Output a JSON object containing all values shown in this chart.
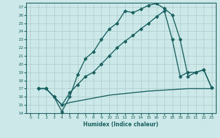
{
  "xlabel": "Humidex (Indice chaleur)",
  "bg_color": "#cce8e8",
  "grid_color": "#aacccc",
  "line_color": "#1a6060",
  "xlim": [
    -0.5,
    23.5
  ],
  "ylim": [
    14,
    27.5
  ],
  "xticks": [
    0,
    1,
    2,
    3,
    4,
    5,
    6,
    7,
    8,
    9,
    10,
    11,
    12,
    13,
    14,
    15,
    16,
    17,
    18,
    19,
    20,
    21,
    22,
    23
  ],
  "yticks": [
    14,
    15,
    16,
    17,
    18,
    19,
    20,
    21,
    22,
    23,
    24,
    25,
    26,
    27
  ],
  "curve1_x": [
    1,
    2,
    3,
    4,
    5,
    6,
    7,
    8,
    9,
    10,
    11,
    12,
    13,
    14,
    15,
    16,
    17,
    18,
    19,
    20,
    21,
    22,
    23
  ],
  "curve1_y": [
    17.0,
    17.0,
    16.0,
    14.2,
    16.0,
    18.7,
    20.7,
    21.5,
    23.0,
    24.3,
    25.0,
    26.5,
    26.3,
    26.7,
    27.2,
    27.4,
    26.8,
    26.0,
    23.0,
    18.5,
    19.0,
    19.3,
    17.1
  ],
  "curve2_x": [
    1,
    2,
    3,
    4,
    5,
    6,
    7,
    8,
    9,
    10,
    11,
    12,
    13,
    14,
    15,
    16,
    17,
    18,
    19,
    20,
    21,
    22,
    23
  ],
  "curve2_y": [
    17.0,
    17.0,
    16.0,
    15.0,
    16.5,
    17.5,
    18.5,
    19.0,
    20.0,
    21.0,
    22.0,
    22.8,
    23.5,
    24.3,
    25.0,
    25.8,
    26.5,
    23.0,
    18.5,
    19.0,
    19.0,
    19.3,
    17.1
  ],
  "curve3_x": [
    1,
    2,
    3,
    4,
    5,
    10,
    15,
    20,
    21,
    22,
    23
  ],
  "curve3_y": [
    17.0,
    17.0,
    16.0,
    15.0,
    15.3,
    16.2,
    16.7,
    17.0,
    17.0,
    17.0,
    17.0
  ],
  "marker": "D",
  "markersize": 2.5,
  "linewidth": 1.0
}
